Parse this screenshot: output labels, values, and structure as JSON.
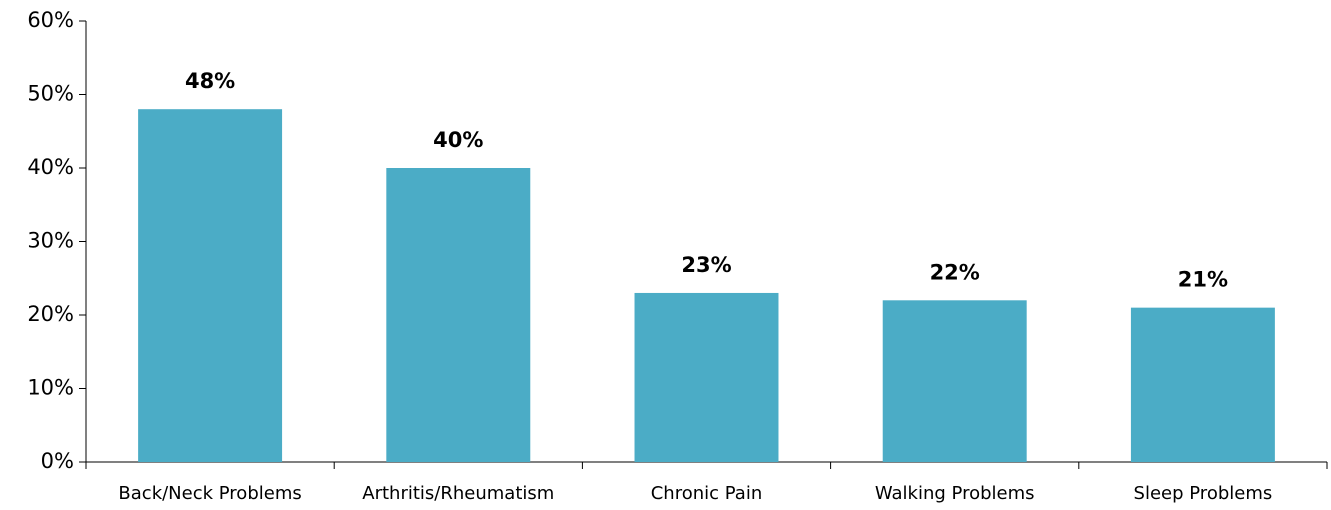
{
  "chart_data": {
    "type": "bar",
    "categories": [
      "Back/Neck Problems",
      "Arthritis/Rheumatism",
      "Chronic Pain",
      "Walking Problems",
      "Sleep Problems"
    ],
    "values": [
      48,
      40,
      23,
      22,
      21
    ],
    "value_labels": [
      "48%",
      "40%",
      "23%",
      "22%",
      "21%"
    ],
    "color": "#4bacc6",
    "ylim": [
      0,
      60
    ],
    "yticks": [
      {
        "value": 0,
        "label": "0%"
      },
      {
        "value": 10,
        "label": "10%"
      },
      {
        "value": 20,
        "label": "20%"
      },
      {
        "value": 30,
        "label": "30%"
      },
      {
        "value": 40,
        "label": "40%"
      },
      {
        "value": 50,
        "label": "50%"
      },
      {
        "value": 60,
        "label": "60%"
      }
    ],
    "grid": false
  }
}
